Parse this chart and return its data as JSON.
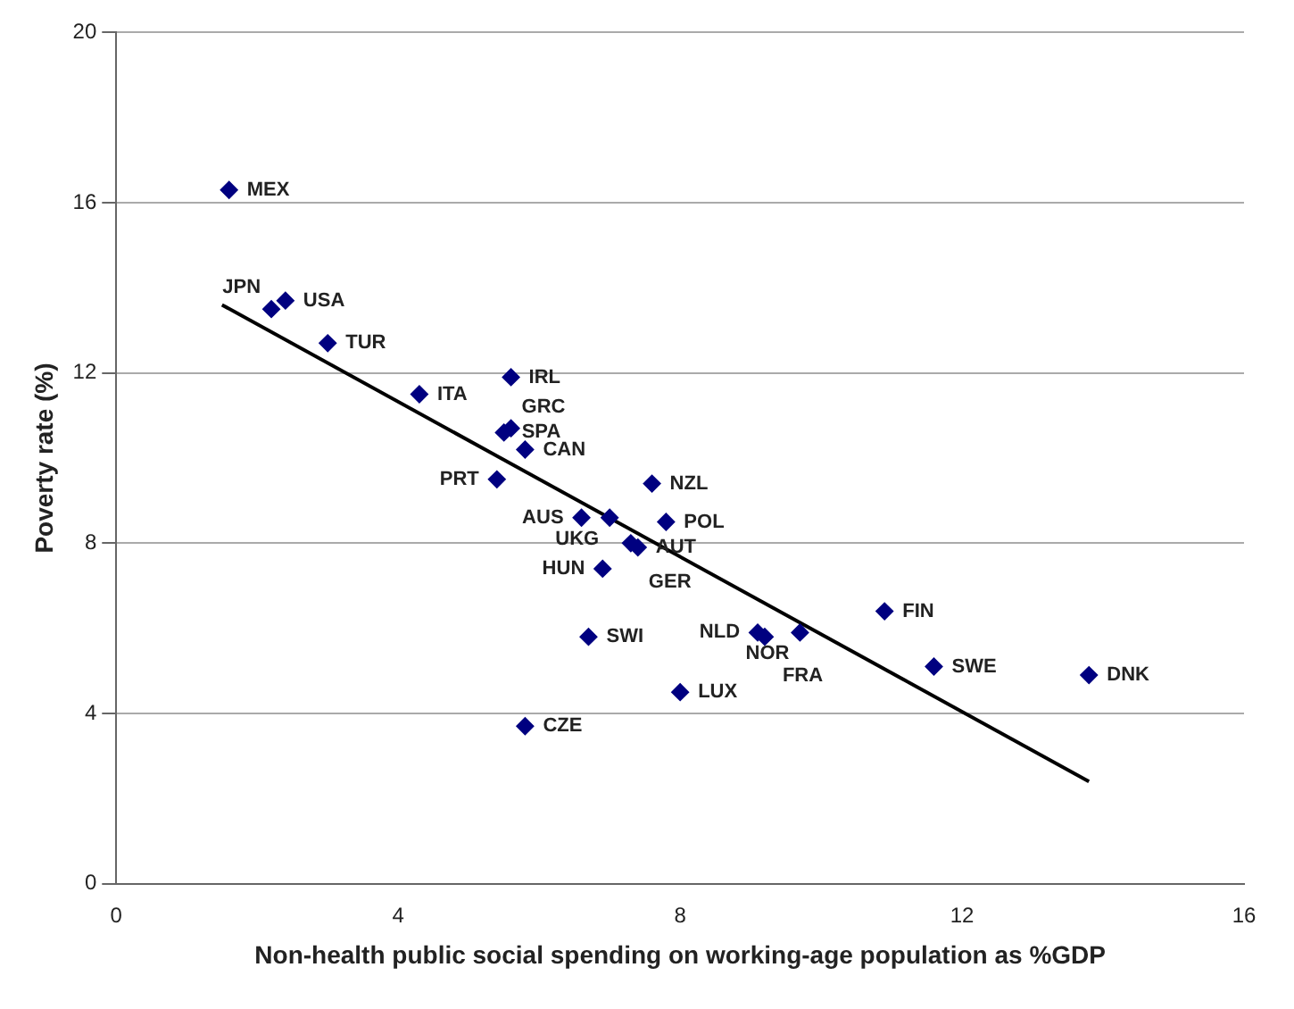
{
  "chart_data": {
    "type": "scatter",
    "xlabel": "Non-health public social spending on working-age population as %GDP",
    "ylabel": "Poverty rate (%)",
    "xlim": [
      0,
      16
    ],
    "xticks": [
      0,
      4,
      8,
      12,
      16
    ],
    "ylim": [
      0,
      20
    ],
    "yticks": [
      0,
      4,
      8,
      12,
      16,
      20
    ],
    "grid": "y",
    "legend": false,
    "marker": "diamond",
    "series": [
      {
        "color": "#000080",
        "x": [
          1.6,
          2.4,
          2.2,
          3.0,
          4.3,
          5.6,
          5.5,
          5.6,
          5.8,
          5.4,
          7.6,
          6.6,
          7.0,
          7.8,
          7.3,
          7.4,
          6.9,
          10.9,
          9.7,
          9.1,
          9.2,
          6.7,
          11.6,
          13.8,
          8.0,
          5.8
        ],
        "values": [
          16.3,
          13.7,
          13.5,
          12.7,
          11.5,
          11.9,
          10.6,
          10.7,
          10.2,
          9.5,
          9.4,
          8.6,
          8.6,
          8.5,
          8.0,
          7.9,
          7.4,
          6.4,
          5.9,
          5.9,
          5.8,
          5.8,
          5.1,
          4.9,
          4.5,
          3.7
        ]
      },
      {
        "type": "line",
        "color": "#000000",
        "x": [
          1.5,
          13.8
        ],
        "values": [
          13.6,
          2.4
        ],
        "marker": "none",
        "line_style": "solid"
      }
    ],
    "annotations": [
      {
        "text": "MEX",
        "x": 1.6,
        "y": 16.3
      },
      {
        "text": "USA",
        "x": 2.4,
        "y": 13.7
      },
      {
        "text": "JPN",
        "x": 2.2,
        "y": 13.5
      },
      {
        "text": "TUR",
        "x": 3.0,
        "y": 12.7
      },
      {
        "text": "ITA",
        "x": 4.3,
        "y": 11.5
      },
      {
        "text": "IRL",
        "x": 5.6,
        "y": 11.9
      },
      {
        "text": "SPA",
        "x": 5.5,
        "y": 10.6
      },
      {
        "text": "GRC",
        "x": 5.6,
        "y": 10.7
      },
      {
        "text": "CAN",
        "x": 5.8,
        "y": 10.2
      },
      {
        "text": "PRT",
        "x": 5.4,
        "y": 9.5
      },
      {
        "text": "NZL",
        "x": 7.6,
        "y": 9.4
      },
      {
        "text": "AUS",
        "x": 6.6,
        "y": 8.6
      },
      {
        "text": "UKG",
        "x": 7.0,
        "y": 8.6
      },
      {
        "text": "POL",
        "x": 7.8,
        "y": 8.5
      },
      {
        "text": "GER",
        "x": 7.3,
        "y": 8.0
      },
      {
        "text": "AUT",
        "x": 7.4,
        "y": 7.9
      },
      {
        "text": "HUN",
        "x": 6.9,
        "y": 7.4
      },
      {
        "text": "FIN",
        "x": 10.9,
        "y": 6.4
      },
      {
        "text": "NOR",
        "x": 9.7,
        "y": 5.9
      },
      {
        "text": "NLD",
        "x": 9.1,
        "y": 5.9
      },
      {
        "text": "FRA",
        "x": 9.2,
        "y": 5.8
      },
      {
        "text": "SWI",
        "x": 6.7,
        "y": 5.8
      },
      {
        "text": "SWE",
        "x": 11.6,
        "y": 5.1
      },
      {
        "text": "DNK",
        "x": 13.8,
        "y": 4.9
      },
      {
        "text": "LUX",
        "x": 8.0,
        "y": 4.5
      },
      {
        "text": "CZE",
        "x": 5.8,
        "y": 3.7
      }
    ]
  }
}
